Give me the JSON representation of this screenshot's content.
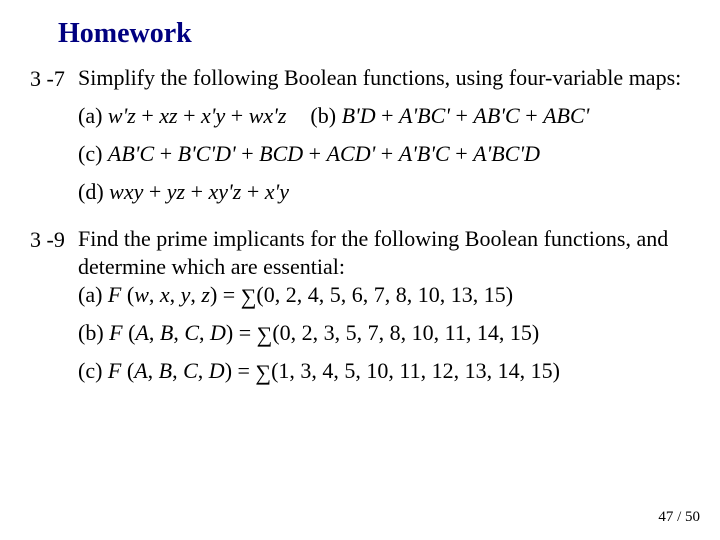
{
  "title": "Homework",
  "q1": {
    "num": "3 -7",
    "prompt": "Simplify the following Boolean functions, using four-variable maps:",
    "a": "(a) <span class=\"it\">w'z</span> + <span class=\"it\">xz</span> + <span class=\"it\">x'y</span> + <span class=\"it\">wx'z</span>",
    "b": "(b) <span class=\"it\">B'D</span> + <span class=\"it\">A'BC'</span> + <span class=\"it\">AB'C</span> + <span class=\"it\">ABC'</span>",
    "c": "(c) <span class=\"it\">AB'C</span> + <span class=\"it\">B'C'D'</span> + <span class=\"it\">BCD</span> + <span class=\"it\">ACD'</span> + <span class=\"it\">A'B'C</span> + <span class=\"it\">A'BC'D</span>",
    "d": "(d) <span class=\"it\">wxy</span> + <span class=\"it\">yz</span> + <span class=\"it\">xy'z</span> + <span class=\"it\">x'y</span>"
  },
  "q2": {
    "num": "3 -9",
    "prompt": "Find the prime implicants for the following Boolean functions, and determine which are essential:",
    "a": "(a) <span class=\"it\">F</span> (<span class=\"it\">w</span>, <span class=\"it\">x</span>, <span class=\"it\">y</span>, <span class=\"it\">z</span>) = <span class=\"sum\">∑</span>(0, 2, 4, 5, 6, 7, 8, 10, 13, 15)",
    "b": "(b) <span class=\"it\">F</span> (<span class=\"it\">A</span>, <span class=\"it\">B</span>, <span class=\"it\">C</span>, <span class=\"it\">D</span>) = <span class=\"sum\">∑</span>(0, 2, 3, 5, 7, 8, 10, 11, 14, 15)",
    "c": "(c) <span class=\"it\">F</span> (<span class=\"it\">A</span>, <span class=\"it\">B</span>, <span class=\"it\">C</span>, <span class=\"it\">D</span>) = <span class=\"sum\">∑</span>(1, 3, 4, 5, 10, 11, 12, 13, 14, 15)"
  },
  "page": "47 / 50",
  "colors": {
    "title": "#000080",
    "text": "#000000",
    "background": "#ffffff"
  }
}
